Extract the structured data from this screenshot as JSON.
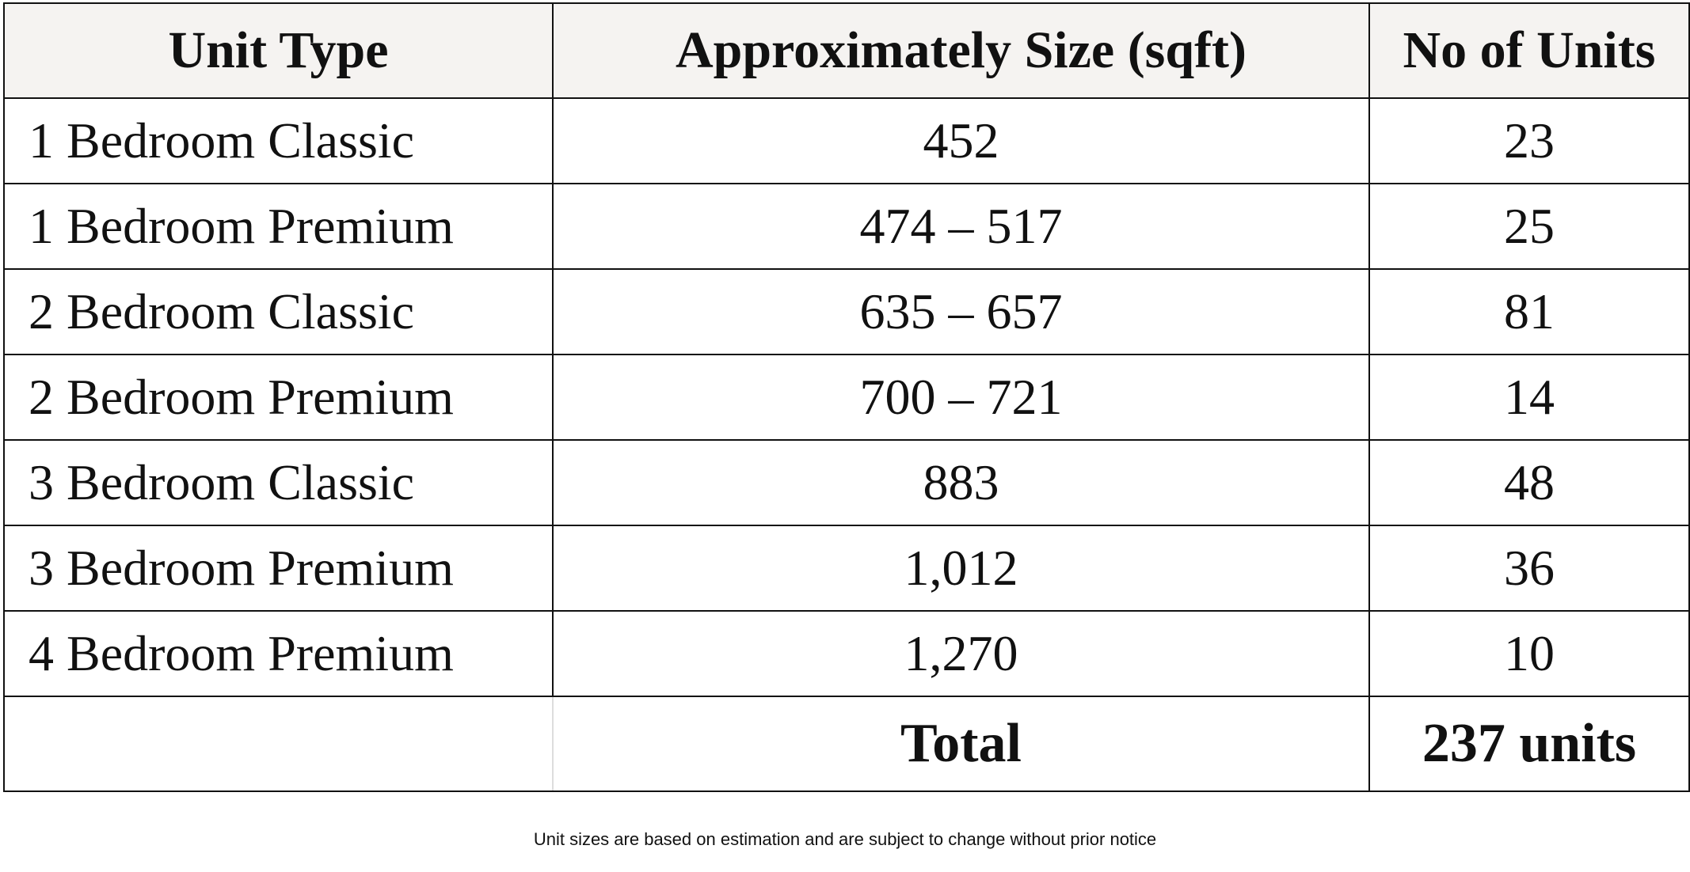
{
  "table": {
    "header": [
      "Unit Type",
      "Approximately Size (sqft)",
      "No of Units"
    ],
    "rows": [
      [
        "1 Bedroom Classic",
        "452",
        "23"
      ],
      [
        "1 Bedroom Premium",
        "474 – 517",
        "25"
      ],
      [
        "2 Bedroom Classic",
        "635 – 657",
        "81"
      ],
      [
        "2 Bedroom Premium",
        "700 – 721",
        "14"
      ],
      [
        "3 Bedroom Classic",
        "883",
        "48"
      ],
      [
        "3 Bedroom Premium",
        "1,012",
        "36"
      ],
      [
        "4 Bedroom Premium",
        "1,270",
        "10"
      ]
    ],
    "total": {
      "label": "Total",
      "value": "237 units"
    }
  },
  "footnote": "Unit sizes are based on estimation and are subject to change without prior notice"
}
